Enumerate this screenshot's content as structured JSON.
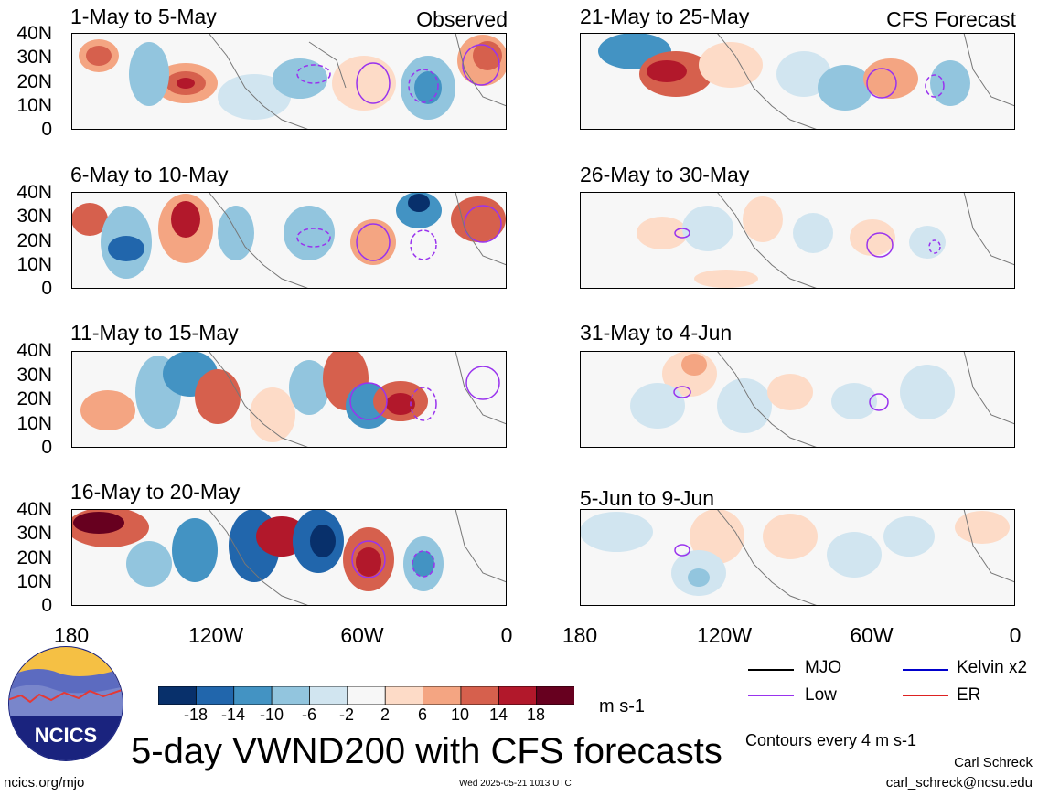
{
  "main_title": "5-day VWND200 with CFS forecasts",
  "site": "ncics.org/mjo",
  "timestamp": "Wed 2025-05-21 1013 UTC",
  "author": "Carl Schreck",
  "email": "carl_schreck@ncsu.edu",
  "logo_text": "NCICS",
  "units": "m s-1",
  "contours_note": "Contours every 4 m s-1",
  "observed_label": "Observed",
  "forecast_label": "CFS Forecast",
  "y_axis_labels": [
    "40N",
    "30N",
    "20N",
    "10N",
    "0"
  ],
  "x_axis_labels": [
    "180",
    "120W",
    "60W",
    "0"
  ],
  "panels_left": [
    {
      "title": "1-May to 5-May"
    },
    {
      "title": "6-May to 10-May"
    },
    {
      "title": "11-May to 15-May"
    },
    {
      "title": "16-May to 20-May"
    }
  ],
  "panels_right": [
    {
      "title": "21-May to 25-May"
    },
    {
      "title": "26-May to 30-May"
    },
    {
      "title": "31-May to 4-Jun"
    },
    {
      "title": "5-Jun to 9-Jun"
    }
  ],
  "colorbar": {
    "labels": [
      "-18",
      "-14",
      "-10",
      "-6",
      "-2",
      "2",
      "6",
      "10",
      "14",
      "18"
    ],
    "colors": [
      "#08306b",
      "#2166ac",
      "#4393c3",
      "#92c5de",
      "#d1e5f0",
      "#f7f7f7",
      "#fddbc7",
      "#f4a582",
      "#d6604d",
      "#b2182b",
      "#67001f"
    ]
  },
  "contour_legend": [
    {
      "label": "MJO",
      "color": "#000000"
    },
    {
      "label": "Kelvin x2",
      "color": "#0000cc"
    },
    {
      "label": "Low",
      "color": "#9933ee"
    },
    {
      "label": "ER",
      "color": "#dd2222"
    }
  ]
}
